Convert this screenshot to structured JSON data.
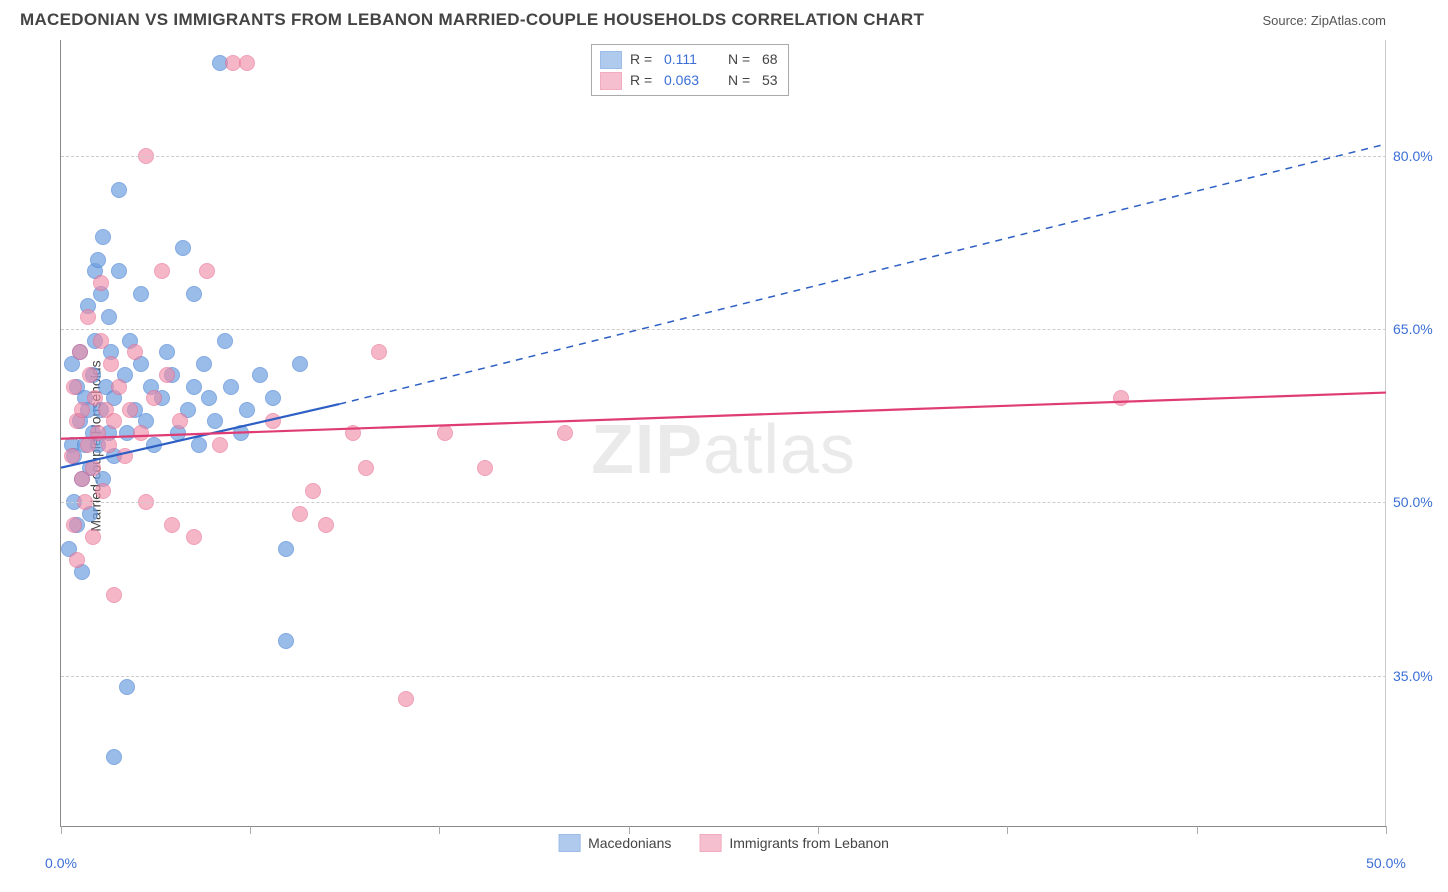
{
  "title": "MACEDONIAN VS IMMIGRANTS FROM LEBANON MARRIED-COUPLE HOUSEHOLDS CORRELATION CHART",
  "source_label": "Source: ZipAtlas.com",
  "watermark": "ZIPatlas",
  "chart": {
    "type": "scatter",
    "ylabel": "Married-couple Households",
    "xlim": [
      0,
      50
    ],
    "ylim": [
      22,
      90
    ],
    "yticks": [
      35.0,
      50.0,
      65.0,
      80.0
    ],
    "ytick_labels": [
      "35.0%",
      "50.0%",
      "65.0%",
      "80.0%"
    ],
    "xticks": [
      0,
      7.14,
      14.28,
      21.43,
      28.57,
      35.71,
      42.86,
      50
    ],
    "x_visible_labels": [
      {
        "x": 0,
        "label": "0.0%"
      },
      {
        "x": 50,
        "label": "50.0%"
      }
    ],
    "grid_color": "#cccccc",
    "background_color": "#ffffff",
    "marker_radius": 8,
    "series": [
      {
        "name": "Macedonians",
        "label": "Macedonians",
        "R": "0.111",
        "N": "68",
        "fill": "#6fa0e0",
        "fill_opacity": 0.35,
        "stroke": "#4f86d6",
        "trend": {
          "start": [
            0,
            53
          ],
          "solid_end": [
            10.5,
            58.5
          ],
          "dash_end": [
            50,
            81
          ],
          "color": "#2d5fc4",
          "width": 2.2
        },
        "points": [
          [
            0.3,
            46
          ],
          [
            0.4,
            55
          ],
          [
            0.4,
            62
          ],
          [
            0.5,
            54
          ],
          [
            0.5,
            50
          ],
          [
            0.6,
            60
          ],
          [
            0.6,
            48
          ],
          [
            0.7,
            57
          ],
          [
            0.7,
            63
          ],
          [
            0.8,
            52
          ],
          [
            0.8,
            44
          ],
          [
            0.9,
            59
          ],
          [
            0.9,
            55
          ],
          [
            1.0,
            67
          ],
          [
            1.0,
            58
          ],
          [
            1.1,
            53
          ],
          [
            1.1,
            49
          ],
          [
            1.2,
            61
          ],
          [
            1.2,
            56
          ],
          [
            1.3,
            70
          ],
          [
            1.3,
            64
          ],
          [
            1.4,
            55
          ],
          [
            1.5,
            58
          ],
          [
            1.5,
            68
          ],
          [
            1.6,
            52
          ],
          [
            1.7,
            60
          ],
          [
            1.8,
            56
          ],
          [
            1.8,
            66
          ],
          [
            1.9,
            63
          ],
          [
            2.0,
            59
          ],
          [
            2.0,
            54
          ],
          [
            2.2,
            77
          ],
          [
            2.2,
            70
          ],
          [
            2.4,
            61
          ],
          [
            2.5,
            56
          ],
          [
            2.6,
            64
          ],
          [
            2.8,
            58
          ],
          [
            3.0,
            68
          ],
          [
            3.0,
            62
          ],
          [
            3.2,
            57
          ],
          [
            3.4,
            60
          ],
          [
            3.5,
            55
          ],
          [
            3.8,
            59
          ],
          [
            4.0,
            63
          ],
          [
            4.2,
            61
          ],
          [
            4.4,
            56
          ],
          [
            4.6,
            72
          ],
          [
            4.8,
            58
          ],
          [
            5.0,
            60
          ],
          [
            5.0,
            68
          ],
          [
            5.2,
            55
          ],
          [
            5.4,
            62
          ],
          [
            5.6,
            59
          ],
          [
            5.8,
            57
          ],
          [
            6.0,
            88
          ],
          [
            6.2,
            64
          ],
          [
            6.4,
            60
          ],
          [
            6.8,
            56
          ],
          [
            7.0,
            58
          ],
          [
            7.5,
            61
          ],
          [
            8.0,
            59
          ],
          [
            8.5,
            46
          ],
          [
            9.0,
            62
          ],
          [
            8.5,
            38
          ],
          [
            2.5,
            34
          ],
          [
            2.0,
            28
          ],
          [
            1.4,
            71
          ],
          [
            1.6,
            73
          ]
        ]
      },
      {
        "name": "Immigrants from Lebanon",
        "label": "Immigrants from Lebanon",
        "R": "0.063",
        "N": "53",
        "fill": "#f08ca8",
        "fill_opacity": 0.28,
        "stroke": "#e86a8e",
        "trend": {
          "start": [
            0,
            55.5
          ],
          "solid_end": [
            50,
            59.5
          ],
          "dash_end": null,
          "color": "#e03c74",
          "width": 2.2
        },
        "points": [
          [
            0.4,
            54
          ],
          [
            0.5,
            48
          ],
          [
            0.5,
            60
          ],
          [
            0.6,
            57
          ],
          [
            0.6,
            45
          ],
          [
            0.7,
            63
          ],
          [
            0.8,
            52
          ],
          [
            0.8,
            58
          ],
          [
            0.9,
            50
          ],
          [
            1.0,
            55
          ],
          [
            1.0,
            66
          ],
          [
            1.1,
            61
          ],
          [
            1.2,
            53
          ],
          [
            1.2,
            47
          ],
          [
            1.3,
            59
          ],
          [
            1.4,
            56
          ],
          [
            1.5,
            69
          ],
          [
            1.5,
            64
          ],
          [
            1.6,
            51
          ],
          [
            1.7,
            58
          ],
          [
            1.8,
            55
          ],
          [
            1.9,
            62
          ],
          [
            2.0,
            57
          ],
          [
            2.2,
            60
          ],
          [
            2.4,
            54
          ],
          [
            2.6,
            58
          ],
          [
            2.8,
            63
          ],
          [
            3.0,
            56
          ],
          [
            3.2,
            50
          ],
          [
            3.5,
            59
          ],
          [
            3.8,
            70
          ],
          [
            4.0,
            61
          ],
          [
            4.5,
            57
          ],
          [
            5.0,
            47
          ],
          [
            5.5,
            70
          ],
          [
            6.0,
            55
          ],
          [
            6.5,
            88
          ],
          [
            7.0,
            88
          ],
          [
            8.0,
            57
          ],
          [
            9.0,
            49
          ],
          [
            9.5,
            51
          ],
          [
            10.0,
            48
          ],
          [
            11.0,
            56
          ],
          [
            11.5,
            53
          ],
          [
            12.0,
            63
          ],
          [
            13.0,
            33
          ],
          [
            14.5,
            56
          ],
          [
            16.0,
            53
          ],
          [
            19.0,
            56
          ],
          [
            2.0,
            42
          ],
          [
            3.2,
            80
          ],
          [
            4.2,
            48
          ],
          [
            40.0,
            59
          ]
        ]
      }
    ]
  },
  "legend_box": {
    "r_label": "R =",
    "n_label": "N ="
  },
  "bottom_legend": [
    {
      "label": "Macedonians",
      "fill": "#6fa0e0",
      "stroke": "#4f86d6"
    },
    {
      "label": "Immigrants from Lebanon",
      "fill": "#f08ca8",
      "stroke": "#e86a8e"
    }
  ]
}
